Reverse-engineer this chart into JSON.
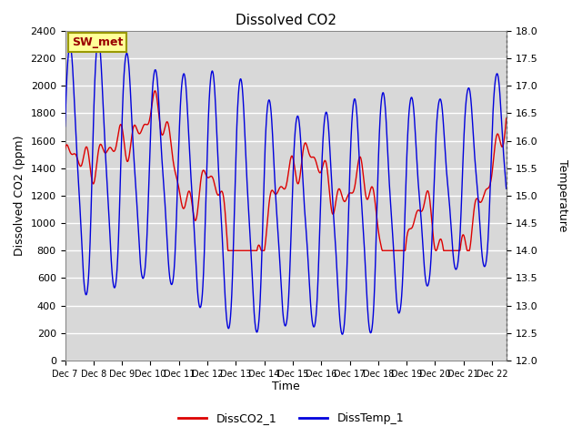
{
  "title": "Dissolved CO2",
  "xlabel": "Time",
  "ylabel_left": "Dissolved CO2 (ppm)",
  "ylabel_right": "Temperature",
  "xlim": [
    0,
    15.5
  ],
  "ylim_left": [
    0,
    2400
  ],
  "ylim_right": [
    12.0,
    18.0
  ],
  "xtick_labels": [
    "Dec 7",
    "Dec 8",
    "Dec 9",
    "Dec 10",
    "Dec 11",
    "Dec 12",
    "Dec 13",
    "Dec 14",
    "Dec 15",
    "Dec 16",
    "Dec 17",
    "Dec 18",
    "Dec 19",
    "Dec 20",
    "Dec 21",
    "Dec 22"
  ],
  "yticks_left": [
    0,
    200,
    400,
    600,
    800,
    1000,
    1200,
    1400,
    1600,
    1800,
    2000,
    2200,
    2400
  ],
  "yticks_right": [
    12.0,
    12.5,
    13.0,
    13.5,
    14.0,
    14.5,
    15.0,
    15.5,
    16.0,
    16.5,
    17.0,
    17.5,
    18.0
  ],
  "background_color": "#d8d8d8",
  "legend_label1": "DissCO2_1",
  "legend_label2": "DissTemp_1",
  "color_co2": "#dd0000",
  "color_temp": "#0000dd",
  "annotation_text": "SW_met",
  "annotation_bg": "#ffff99",
  "annotation_border": "#999900"
}
